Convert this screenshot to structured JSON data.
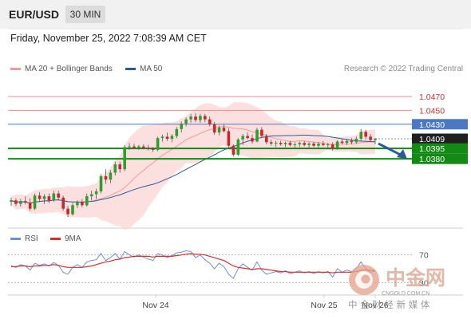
{
  "header": {
    "symbol": "EUR/USD",
    "timeframe": "30 MIN"
  },
  "datetime": "Friday, November 25, 2022 7:08:39 AM CET",
  "legend": [
    {
      "label": "MA 20 + Bollinger Bands",
      "color": "#f29a9a"
    },
    {
      "label": "MA 50",
      "color": "#2c5a96"
    }
  ],
  "credit": "Research © 2022 Trading Central",
  "rsi_legend": [
    {
      "label": "RSI",
      "color": "#6e8fd6"
    },
    {
      "label": "9MA",
      "color": "#d62f2f"
    }
  ],
  "colors": {
    "up": "#2e9e2e",
    "down": "#c8282b",
    "resistance": "#f08c8c",
    "pivot": "#4a78c2",
    "support": "#138a13"
  },
  "watermark": {
    "name": "中金网",
    "domain": "CNGOLD.COM.CN",
    "slogan": "中 金 财 经 新 媒 体"
  },
  "chart_data": [
    {
      "type": "candlestick",
      "title": "EUR/USD 30 MIN",
      "ylim": [
        1.028,
        1.05
      ],
      "x_ticks": [
        "Nov 24",
        "Nov 25",
        "Nov 26"
      ],
      "levels": [
        {
          "value": 1.047,
          "label": "1.0470",
          "kind": "resistance"
        },
        {
          "value": 1.045,
          "label": "1.0450",
          "kind": "resistance"
        },
        {
          "value": 1.043,
          "label": "1.0430",
          "kind": "pivot"
        },
        {
          "value": 1.0409,
          "label": "1.0409",
          "kind": "last"
        },
        {
          "value": 1.0395,
          "label": "1.0395",
          "kind": "support"
        },
        {
          "value": 1.038,
          "label": "1.0380",
          "kind": "support"
        }
      ],
      "forecast": {
        "direction": "down",
        "from": 1.0402,
        "to": 1.038
      },
      "ohlc": [
        [
          1.0318,
          1.0324,
          1.0312,
          1.032
        ],
        [
          1.032,
          1.0323,
          1.0312,
          1.0315
        ],
        [
          1.0315,
          1.0322,
          1.0311,
          1.0319
        ],
        [
          1.0319,
          1.0326,
          1.0314,
          1.0317
        ],
        [
          1.0317,
          1.0323,
          1.0305,
          1.0308
        ],
        [
          1.0308,
          1.033,
          1.0306,
          1.0327
        ],
        [
          1.0327,
          1.0332,
          1.0318,
          1.0322
        ],
        [
          1.0322,
          1.0329,
          1.0315,
          1.0326
        ],
        [
          1.0326,
          1.033,
          1.0316,
          1.032
        ],
        [
          1.032,
          1.0334,
          1.0318,
          1.033
        ],
        [
          1.033,
          1.0334,
          1.032,
          1.0324
        ],
        [
          1.0324,
          1.0327,
          1.0305,
          1.0308
        ],
        [
          1.0308,
          1.0312,
          1.0296,
          1.03
        ],
        [
          1.03,
          1.0316,
          1.0298,
          1.0313
        ],
        [
          1.0313,
          1.032,
          1.0309,
          1.0318
        ],
        [
          1.0318,
          1.0322,
          1.031,
          1.0313
        ],
        [
          1.0313,
          1.033,
          1.0311,
          1.0326
        ],
        [
          1.0326,
          1.0334,
          1.032,
          1.0329
        ],
        [
          1.0329,
          1.0337,
          1.0322,
          1.0333
        ],
        [
          1.0333,
          1.0358,
          1.033,
          1.0355
        ],
        [
          1.0355,
          1.0365,
          1.0344,
          1.035
        ],
        [
          1.035,
          1.0364,
          1.0345,
          1.036
        ],
        [
          1.036,
          1.0376,
          1.0356,
          1.0372
        ],
        [
          1.0372,
          1.0376,
          1.036,
          1.0365
        ],
        [
          1.0365,
          1.04,
          1.0362,
          1.0397
        ],
        [
          1.0397,
          1.0403,
          1.0393,
          1.0398
        ],
        [
          1.0398,
          1.0402,
          1.0394,
          1.0396
        ],
        [
          1.0396,
          1.04,
          1.0393,
          1.0398
        ],
        [
          1.0398,
          1.0401,
          1.0394,
          1.0396
        ],
        [
          1.0396,
          1.04,
          1.0392,
          1.0394
        ],
        [
          1.0394,
          1.0397,
          1.039,
          1.0393
        ],
        [
          1.0393,
          1.0412,
          1.0391,
          1.041
        ],
        [
          1.041,
          1.0415,
          1.0405,
          1.0412
        ],
        [
          1.0412,
          1.0418,
          1.0406,
          1.0409
        ],
        [
          1.0409,
          1.0416,
          1.0404,
          1.0413
        ],
        [
          1.0413,
          1.0426,
          1.041,
          1.0423
        ],
        [
          1.0423,
          1.0434,
          1.0418,
          1.0431
        ],
        [
          1.0431,
          1.044,
          1.0427,
          1.0437
        ],
        [
          1.0437,
          1.0445,
          1.0432,
          1.0441
        ],
        [
          1.0441,
          1.0446,
          1.0433,
          1.0436
        ],
        [
          1.0436,
          1.0445,
          1.0432,
          1.0442
        ],
        [
          1.0442,
          1.0445,
          1.0433,
          1.0437
        ],
        [
          1.0437,
          1.0441,
          1.0427,
          1.043
        ],
        [
          1.043,
          1.0433,
          1.0415,
          1.0418
        ],
        [
          1.0418,
          1.0428,
          1.0414,
          1.0425
        ],
        [
          1.0425,
          1.043,
          1.0418,
          1.042
        ],
        [
          1.042,
          1.0424,
          1.0396,
          1.0399
        ],
        [
          1.0399,
          1.0401,
          1.0383,
          1.0386
        ],
        [
          1.0386,
          1.041,
          1.0384,
          1.0408
        ],
        [
          1.0408,
          1.0416,
          1.04,
          1.0413
        ],
        [
          1.0413,
          1.0418,
          1.0408,
          1.041
        ],
        [
          1.041,
          1.0415,
          1.0402,
          1.0405
        ],
        [
          1.0405,
          1.0425,
          1.0404,
          1.0422
        ],
        [
          1.0422,
          1.0426,
          1.041,
          1.0413
        ],
        [
          1.0413,
          1.0416,
          1.0401,
          1.0404
        ],
        [
          1.0404,
          1.0408,
          1.0399,
          1.0402
        ],
        [
          1.0402,
          1.0406,
          1.0397,
          1.0403
        ],
        [
          1.0403,
          1.0406,
          1.0399,
          1.0401
        ],
        [
          1.0401,
          1.0405,
          1.0397,
          1.0403
        ],
        [
          1.0403,
          1.0406,
          1.0398,
          1.04
        ],
        [
          1.04,
          1.0404,
          1.0396,
          1.0401
        ],
        [
          1.0401,
          1.0405,
          1.0397,
          1.0403
        ],
        [
          1.0403,
          1.0406,
          1.0398,
          1.04
        ],
        [
          1.04,
          1.0404,
          1.0396,
          1.0402
        ],
        [
          1.0402,
          1.0405,
          1.0397,
          1.0399
        ],
        [
          1.0399,
          1.0404,
          1.0396,
          1.0402
        ],
        [
          1.0402,
          1.0406,
          1.0398,
          1.04
        ],
        [
          1.04,
          1.0403,
          1.0396,
          1.0401
        ],
        [
          1.0401,
          1.0404,
          1.0392,
          1.0395
        ],
        [
          1.0395,
          1.0407,
          1.0393,
          1.0405
        ],
        [
          1.0405,
          1.0409,
          1.0401,
          1.0403
        ],
        [
          1.0403,
          1.0408,
          1.04,
          1.0406
        ],
        [
          1.0406,
          1.041,
          1.0401,
          1.0404
        ],
        [
          1.0404,
          1.0412,
          1.0402,
          1.0409
        ],
        [
          1.0409,
          1.0423,
          1.0406,
          1.0419
        ],
        [
          1.0419,
          1.0422,
          1.0408,
          1.0412
        ],
        [
          1.0412,
          1.0416,
          1.0405,
          1.0407
        ],
        [
          1.0407,
          1.041,
          1.0401,
          1.0409
        ]
      ]
    },
    {
      "type": "line",
      "title": "RSI",
      "ylim": [
        20,
        80
      ],
      "ref_lines": [
        70,
        30
      ],
      "series": [
        {
          "name": "RSI",
          "values": [
            54,
            52,
            56,
            54,
            48,
            58,
            55,
            57,
            54,
            59,
            55,
            45,
            42,
            52,
            56,
            52,
            60,
            62,
            63,
            72,
            62,
            66,
            72,
            64,
            75,
            70,
            67,
            70,
            67,
            64,
            62,
            72,
            70,
            66,
            69,
            73,
            74,
            76,
            75,
            66,
            70,
            63,
            58,
            50,
            58,
            53,
            42,
            36,
            50,
            57,
            52,
            48,
            60,
            48,
            42,
            44,
            46,
            44,
            47,
            43,
            45,
            47,
            44,
            46,
            43,
            46,
            44,
            46,
            38,
            50,
            45,
            48,
            46,
            50,
            60,
            50,
            45,
            47
          ]
        },
        {
          "name": "9MA",
          "values": [
            53,
            53,
            54,
            54,
            53,
            54,
            54,
            55,
            55,
            56,
            55,
            53,
            52,
            52,
            52,
            52,
            53,
            54,
            56,
            58,
            60,
            61,
            63,
            64,
            66,
            67,
            68,
            68,
            68,
            68,
            67,
            68,
            68,
            68,
            68,
            69,
            70,
            71,
            72,
            71,
            71,
            70,
            68,
            66,
            64,
            62,
            58,
            54,
            52,
            51,
            50,
            49,
            50,
            50,
            49,
            48,
            47,
            46,
            46,
            45,
            45,
            45,
            45,
            45,
            45,
            45,
            45,
            45,
            44,
            45,
            45,
            45,
            45,
            46,
            48,
            48,
            48,
            47
          ]
        }
      ]
    }
  ]
}
